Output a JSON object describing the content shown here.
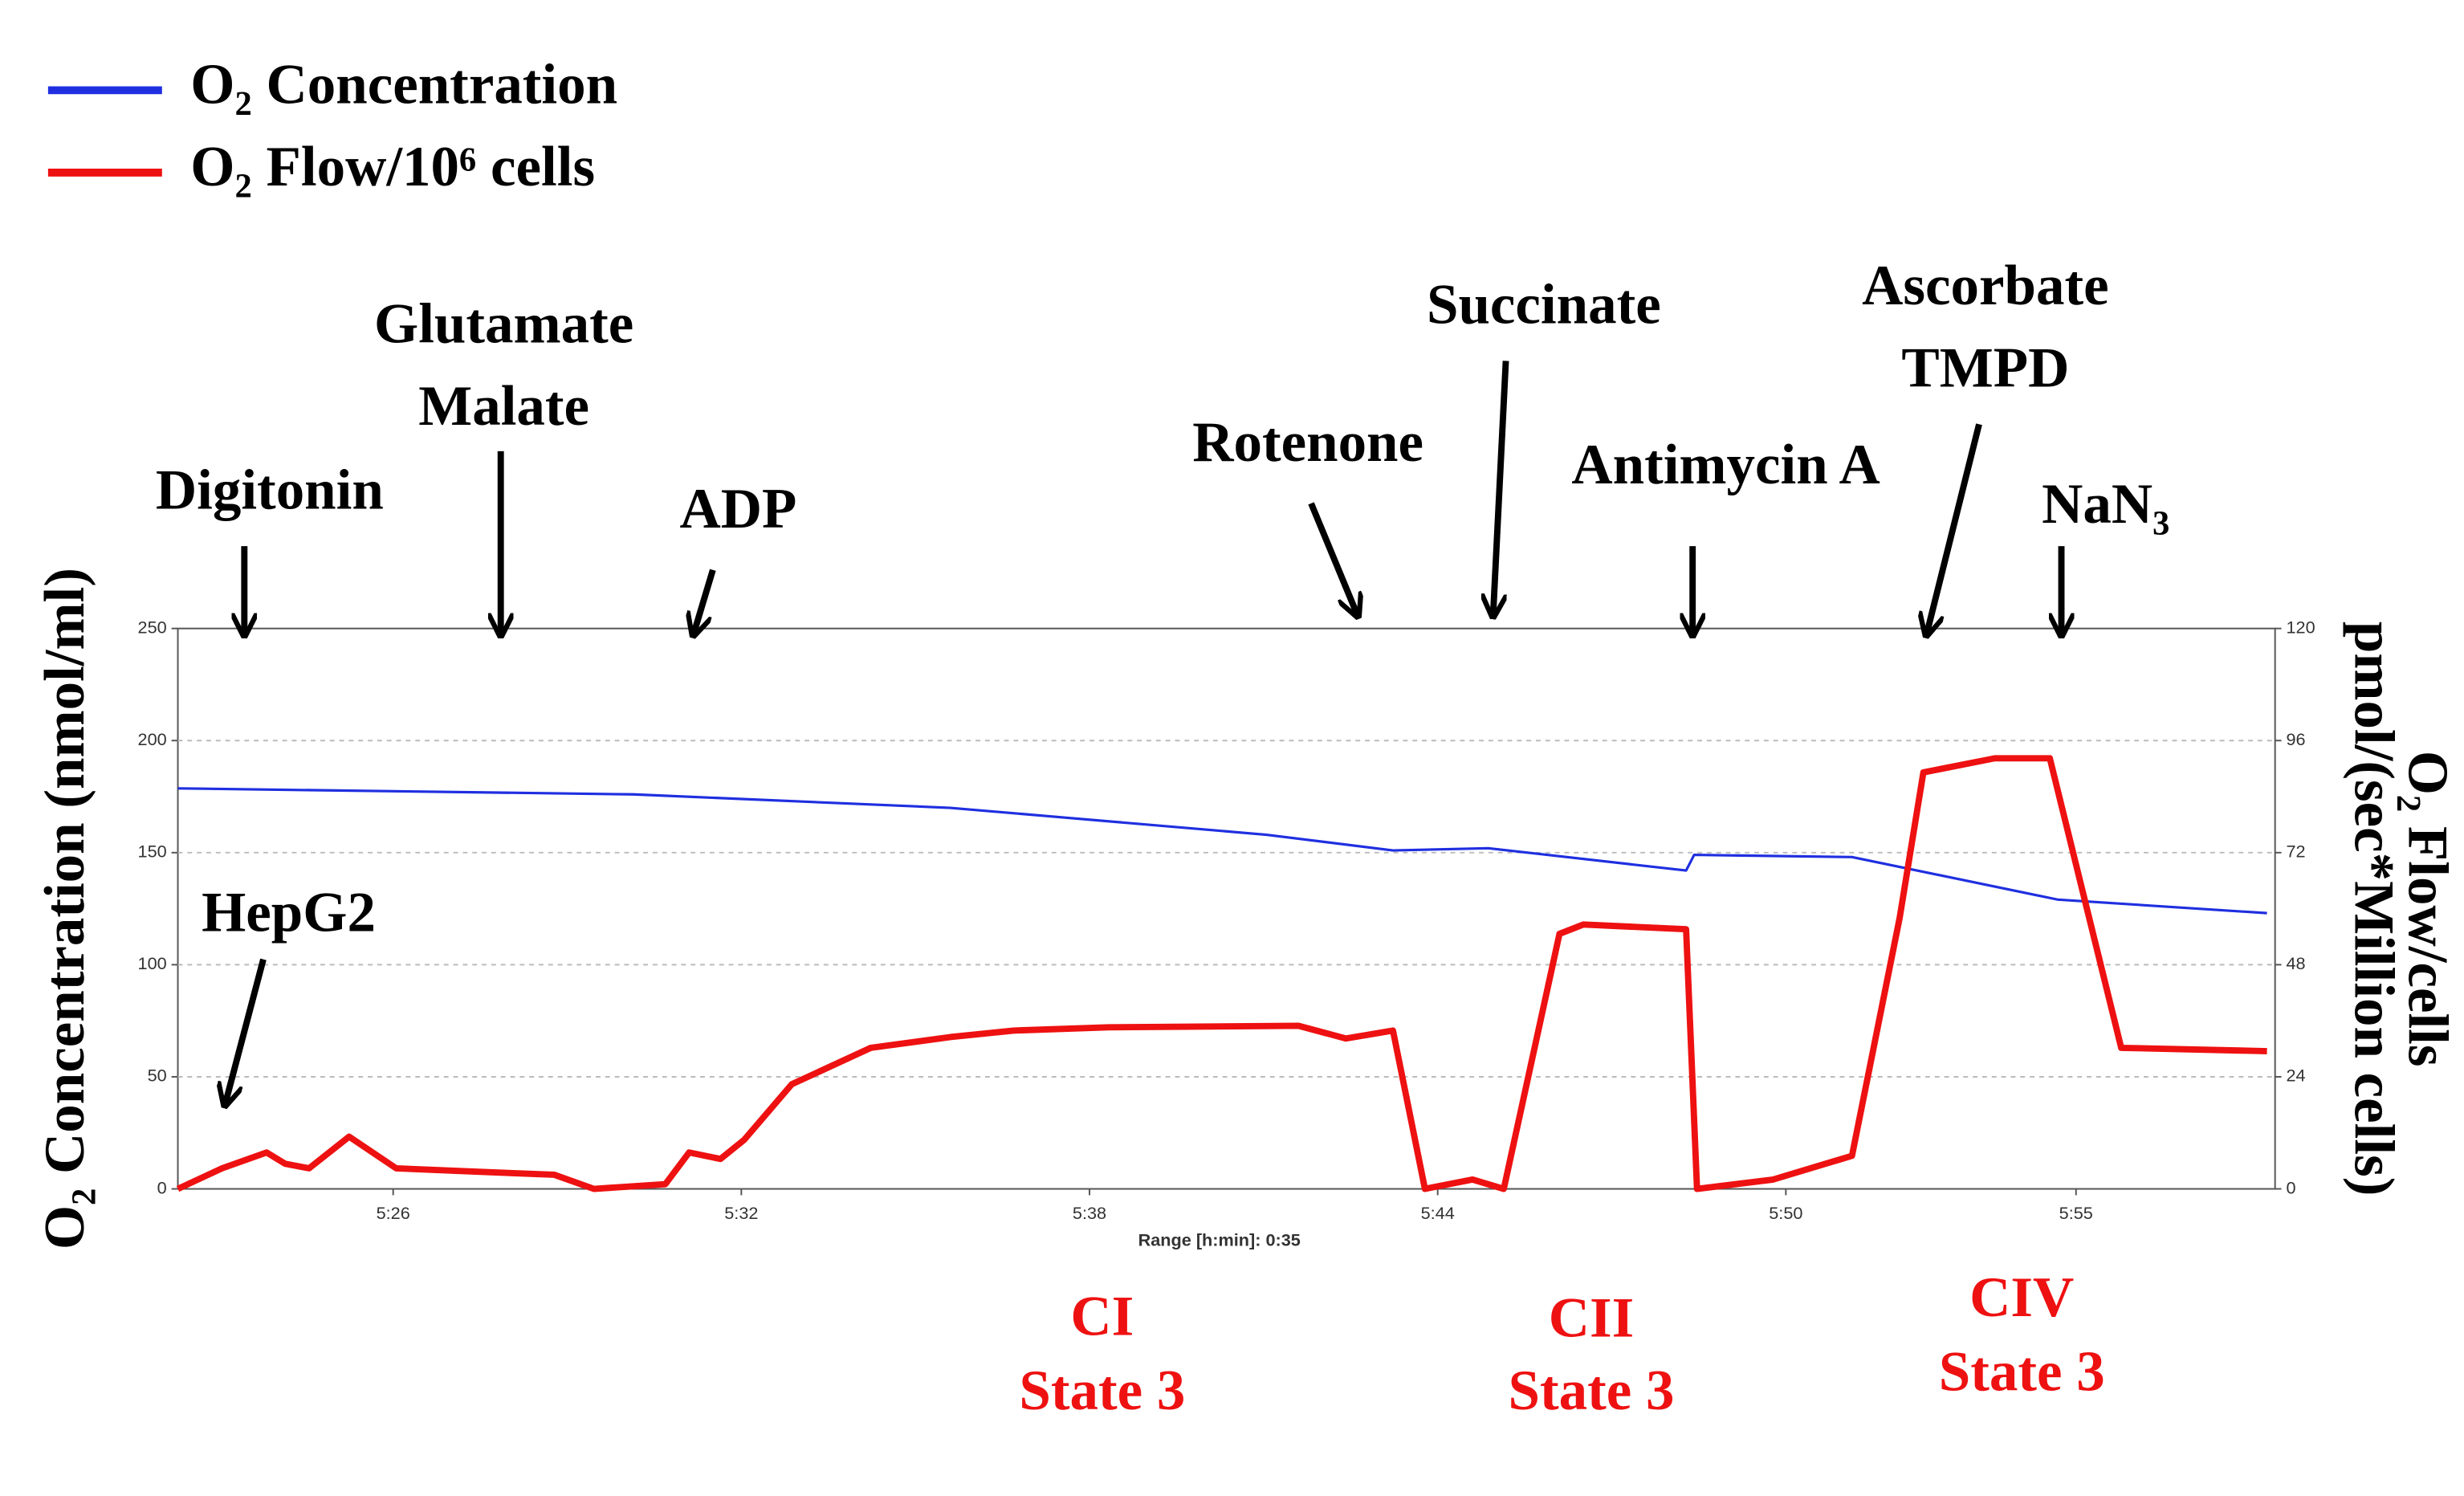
{
  "chart_data": {
    "type": "line",
    "x_label": "Range [h:min]: 0:35",
    "y_label": "O₂ Concentration (nmol/ml)",
    "y2_label": [
      "O₂ Flow/cells",
      "pmol/(sec*Million cells)"
    ],
    "xlim": [
      322.29,
      358.43
    ],
    "xticks": [
      {
        "value": 326,
        "label": "5:26"
      },
      {
        "value": 332,
        "label": "5:32"
      },
      {
        "value": 338,
        "label": "5:38"
      },
      {
        "value": 344,
        "label": "5:44"
      },
      {
        "value": 350,
        "label": "5:50"
      },
      {
        "value": 355,
        "label": "5:55"
      }
    ],
    "ylim": [
      0,
      250
    ],
    "yticks": [
      0,
      50,
      100,
      150,
      200,
      250
    ],
    "y2lim": [
      0,
      120
    ],
    "y2ticks": [
      0,
      24,
      48,
      72,
      96,
      120
    ],
    "grid": true,
    "series": [
      {
        "name": "O₂ Concentration",
        "color": "#1f2fe0",
        "x": [
          322.29,
          330.14,
          335.6,
          341.05,
          343.23,
          344.87,
          348.28,
          348.42,
          351.14,
          354.69,
          358.29
        ],
        "values": [
          178.7,
          176,
          170,
          158,
          151,
          152,
          142,
          149,
          148,
          129,
          123
        ]
      },
      {
        "name": "O₂ Flow/10⁶ cells",
        "color": "#ee1111",
        "axis": "y2",
        "x": [
          322.29,
          323.05,
          323.82,
          324.14,
          324.55,
          325.24,
          326.05,
          327.42,
          328.78,
          329.46,
          330.69,
          331.1,
          331.64,
          332.05,
          332.87,
          334.23,
          335.6,
          336.69,
          338.33,
          341.6,
          342.42,
          343.23,
          343.78,
          344.6,
          345.14,
          346.1,
          346.51,
          348.28,
          348.47,
          349.78,
          351.14,
          351.96,
          352.37,
          353.6,
          354.55,
          355.78,
          358.29
        ],
        "values": [
          0,
          4.4,
          7.8,
          5.4,
          4.4,
          11.2,
          4.4,
          3.7,
          3,
          0,
          1,
          7.8,
          6.4,
          10.5,
          22.4,
          30.2,
          32.5,
          33.9,
          34.6,
          34.9,
          32.2,
          33.9,
          0,
          2,
          0,
          54.6,
          56.6,
          55.6,
          0,
          2,
          7.1,
          58,
          89.2,
          92.2,
          92.2,
          30.2,
          29.5
        ]
      }
    ],
    "annotations": [
      {
        "lines": [
          "Digitonin"
        ],
        "color": "#000000"
      },
      {
        "lines": [
          "Glutamate",
          "Malate"
        ],
        "color": "#000000"
      },
      {
        "lines": [
          "ADP"
        ],
        "color": "#000000"
      },
      {
        "lines": [
          "Rotenone"
        ],
        "color": "#000000"
      },
      {
        "lines": [
          "Succinate"
        ],
        "color": "#000000"
      },
      {
        "lines": [
          "Antimycin A"
        ],
        "color": "#000000"
      },
      {
        "lines": [
          "Ascorbate",
          "TMPD"
        ],
        "color": "#000000"
      },
      {
        "lines": [
          "NaN₃"
        ],
        "color": "#000000"
      },
      {
        "lines": [
          "HepG2"
        ],
        "color": "#000000"
      },
      {
        "lines": [
          "CI",
          "State 3"
        ],
        "color": "#ee1111"
      },
      {
        "lines": [
          "CII",
          "State 3"
        ],
        "color": "#ee1111"
      },
      {
        "lines": [
          "CIV",
          "State 3"
        ],
        "color": "#ee1111"
      }
    ]
  }
}
